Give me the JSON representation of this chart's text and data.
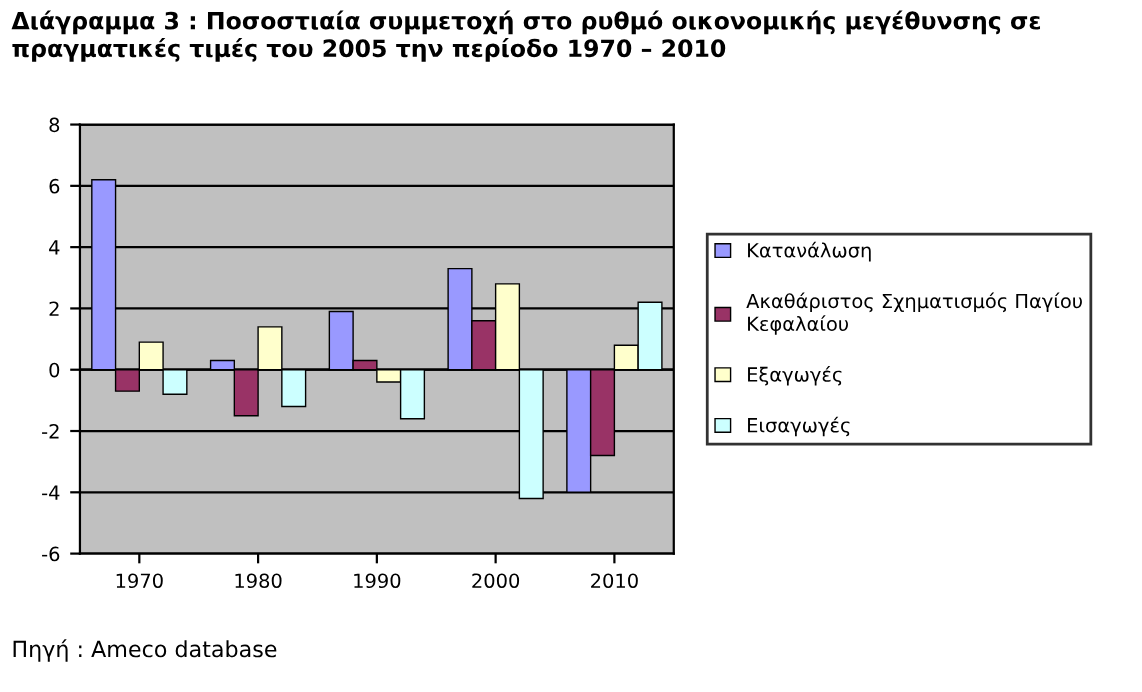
{
  "chart_data": {
    "type": "bar",
    "title": "Διάγραμμα 3 : Ποσοστιαία συμμετοχή στο ρυθμό οικονομικής μεγέθυνσης σε πραγματικές τιμές του 2005 την περίοδο 1970 – 2010",
    "categories": [
      "1970",
      "1980",
      "1990",
      "2000",
      "2010"
    ],
    "series": [
      {
        "name": "Κατανάλωση",
        "color": "#9999ff",
        "values": [
          6.2,
          0.3,
          1.9,
          3.3,
          -4.0
        ]
      },
      {
        "name": "Ακαθάριστος Σχηματισμός Παγίου\nΚεφαλαίου",
        "color": "#993366",
        "values": [
          -0.7,
          -1.5,
          0.3,
          1.6,
          -2.8
        ]
      },
      {
        "name": "Εξαγωγές",
        "color": "#ffffcc",
        "values": [
          0.9,
          1.4,
          -0.4,
          2.8,
          0.8
        ]
      },
      {
        "name": "Εισαγωγές",
        "color": "#ccffff",
        "values": [
          -0.8,
          -1.2,
          -1.6,
          -4.2,
          2.2
        ]
      }
    ],
    "ylim": [
      -6,
      8
    ],
    "yticks": [
      -6,
      -4,
      -2,
      0,
      2,
      4,
      6,
      8
    ],
    "grid": "y",
    "legend": "right",
    "annotations": [
      "Πηγή : Ameco database"
    ]
  }
}
